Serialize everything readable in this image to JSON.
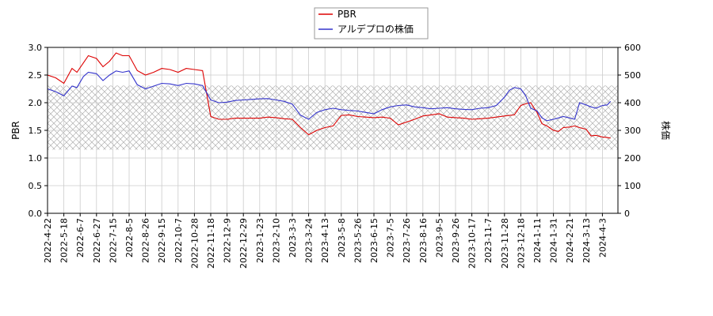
{
  "chart_data": {
    "type": "line",
    "title": "",
    "xlabel": "",
    "ylabel_left": "PBR",
    "ylabel_right": "株価",
    "ylim_left": [
      0,
      3.0
    ],
    "ylim_right": [
      0,
      600
    ],
    "yticks_left": [
      "0.0",
      "0.5",
      "1.0",
      "1.5",
      "2.0",
      "2.5",
      "3.0"
    ],
    "yticks_right": [
      "0",
      "100",
      "200",
      "300",
      "400",
      "500",
      "600"
    ],
    "xticks": [
      "2022-4-22",
      "2022-5-18",
      "2022-6-7",
      "2022-6-27",
      "2022-7-15",
      "2022-8-5",
      "2022-8-26",
      "2022-9-15",
      "2022-10-7",
      "2022-10-28",
      "2022-11-18",
      "2022-12-9",
      "2022-12-29",
      "2023-1-23",
      "2023-2-10",
      "2023-3-3",
      "2023-3-24",
      "2023-4-13",
      "2023-5-8",
      "2023-5-26",
      "2023-6-15",
      "2023-7-5",
      "2023-7-26",
      "2023-8-16",
      "2023-9-5",
      "2023-9-26",
      "2023-10-17",
      "2023-11-7",
      "2023-11-28",
      "2023-12-18",
      "2024-1-11",
      "2024-1-31",
      "2024-2-21",
      "2024-3-13",
      "2024-4-3"
    ],
    "grid": true,
    "legend_position": "top-center",
    "hatched_band_right": [
      230,
      462
    ],
    "series": [
      {
        "name": "PBR",
        "axis": "left",
        "color": "#dd0000",
        "x": [
          0,
          0.5,
          1,
          1.5,
          1.8,
          2.2,
          2.5,
          3,
          3.4,
          3.8,
          4.2,
          4.6,
          5,
          5.5,
          6,
          6.5,
          7,
          7.5,
          8,
          8.5,
          9,
          9.5,
          10,
          10.5,
          11,
          11.5,
          12,
          12.5,
          13,
          13.5,
          14,
          14.5,
          15,
          15.5,
          16,
          16.5,
          17,
          17.5,
          18,
          18.5,
          19,
          19.5,
          20,
          20.5,
          21,
          21.5,
          22,
          22.5,
          23,
          23.5,
          24,
          24.5,
          25,
          25.5,
          26,
          26.5,
          27,
          27.5,
          28,
          28.3,
          28.6,
          29,
          29.3,
          29.6,
          30,
          30.3,
          30.6,
          31,
          31.3,
          31.6,
          32,
          32.3,
          32.6,
          33,
          33.3,
          33.6,
          34,
          34.3,
          34.5
        ],
        "values": [
          2.5,
          2.45,
          2.35,
          2.62,
          2.55,
          2.72,
          2.85,
          2.8,
          2.65,
          2.75,
          2.9,
          2.85,
          2.85,
          2.58,
          2.5,
          2.55,
          2.62,
          2.6,
          2.55,
          2.62,
          2.6,
          2.58,
          1.75,
          1.7,
          1.7,
          1.72,
          1.72,
          1.72,
          1.72,
          1.74,
          1.73,
          1.71,
          1.7,
          1.55,
          1.42,
          1.5,
          1.55,
          1.58,
          1.77,
          1.78,
          1.75,
          1.74,
          1.73,
          1.74,
          1.72,
          1.6,
          1.65,
          1.7,
          1.76,
          1.78,
          1.8,
          1.74,
          1.73,
          1.72,
          1.7,
          1.71,
          1.72,
          1.74,
          1.76,
          1.77,
          1.78,
          1.95,
          1.98,
          2.0,
          1.82,
          1.62,
          1.58,
          1.5,
          1.48,
          1.55,
          1.56,
          1.58,
          1.55,
          1.52,
          1.4,
          1.41,
          1.38,
          1.37,
          1.36
        ]
      },
      {
        "name": "アルデプロの株価",
        "axis": "right",
        "color": "#3333cc",
        "x": [
          0,
          0.5,
          1,
          1.5,
          1.8,
          2.2,
          2.5,
          3,
          3.4,
          3.8,
          4.2,
          4.6,
          5,
          5.5,
          6,
          6.5,
          7,
          7.5,
          8,
          8.5,
          9,
          9.5,
          10,
          10.5,
          11,
          11.5,
          12,
          12.5,
          13,
          13.5,
          14,
          14.5,
          15,
          15.5,
          16,
          16.5,
          17,
          17.5,
          18,
          18.5,
          19,
          19.5,
          20,
          20.5,
          21,
          21.5,
          22,
          22.5,
          23,
          23.5,
          24,
          24.5,
          25,
          25.5,
          26,
          26.5,
          27,
          27.5,
          28,
          28.3,
          28.6,
          29,
          29.3,
          29.6,
          30,
          30.3,
          30.6,
          31,
          31.3,
          31.6,
          32,
          32.3,
          32.6,
          33,
          33.3,
          33.6,
          34,
          34.3,
          34.5
        ],
        "values": [
          450,
          440,
          425,
          460,
          455,
          495,
          510,
          505,
          480,
          500,
          515,
          510,
          515,
          465,
          450,
          460,
          470,
          468,
          462,
          470,
          468,
          462,
          410,
          400,
          402,
          408,
          410,
          412,
          414,
          415,
          410,
          405,
          395,
          355,
          340,
          365,
          375,
          380,
          375,
          372,
          370,
          365,
          360,
          375,
          385,
          390,
          392,
          385,
          382,
          378,
          380,
          382,
          378,
          376,
          375,
          380,
          382,
          390,
          420,
          445,
          455,
          450,
          425,
          380,
          370,
          345,
          335,
          340,
          345,
          350,
          345,
          340,
          400,
          392,
          385,
          380,
          390,
          392,
          405
        ]
      }
    ]
  },
  "legend": {
    "items": [
      {
        "label": "PBR",
        "color": "#dd0000"
      },
      {
        "label": "アルデプロの株価",
        "color": "#3333cc"
      }
    ]
  }
}
